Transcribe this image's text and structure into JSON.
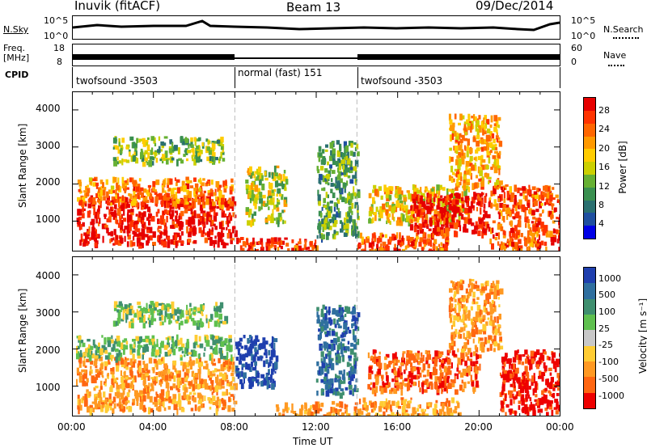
{
  "header": {
    "station": "Inuvik (fitACF)",
    "beam": "Beam 13",
    "date": "09/Dec/2014"
  },
  "aux": {
    "nsky_label": "N.Sky",
    "nsky_ticks": [
      "10^5",
      "10^0"
    ],
    "nsearch_label": "N.Search",
    "nsearch_ticks": [
      "10^5",
      "10^0"
    ],
    "freq_label_1": "Freq.",
    "freq_label_2": "[MHz]",
    "freq_ticks": [
      "18",
      "8"
    ],
    "nave_label": "Nave",
    "nave_ticks": [
      "60",
      "0"
    ],
    "cpid_label": "CPID",
    "cpid_segments": [
      {
        "name": "twofsound -3503",
        "start": 0,
        "end": 8
      },
      {
        "name": "normal (fast) 151",
        "start": 8,
        "end": 14
      },
      {
        "name": "twofsound -3503",
        "start": 14,
        "end": 24
      }
    ]
  },
  "chart_data": [
    {
      "type": "heatmap",
      "quantity": "Power",
      "ylabel": "Slant Range [km]",
      "xlabel": "Time UT",
      "xlim": [
        0,
        24
      ],
      "ylim": [
        180,
        4500
      ],
      "y_ticks": [
        "1000",
        "2000",
        "3000",
        "4000"
      ],
      "x_ticks": [
        "00:00",
        "04:00",
        "08:00",
        "12:00",
        "16:00",
        "20:00",
        "00:00"
      ],
      "colorbar_label": "Power [dB]",
      "colorbar_ticks": [
        "28",
        "24",
        "20",
        "16",
        "12",
        "8",
        "4"
      ],
      "colorbar_colors": [
        "#e60000",
        "#ff3300",
        "#ff6600",
        "#ff9900",
        "#ffcc00",
        "#ccd000",
        "#66b033",
        "#3a9050",
        "#2a7070",
        "#1f4fa0",
        "#0000e6"
      ],
      "features": [
        {
          "t0": 0.2,
          "t1": 8.0,
          "r0": 400,
          "r1": 1700,
          "level": 28
        },
        {
          "t0": 0.2,
          "t1": 7.8,
          "r0": 1500,
          "r1": 2200,
          "level": 22
        },
        {
          "t0": 2.0,
          "t1": 7.5,
          "r0": 2600,
          "r1": 3300,
          "level": 14
        },
        {
          "t0": 8.0,
          "t1": 12.0,
          "r0": 200,
          "r1": 600,
          "level": 26
        },
        {
          "t0": 8.5,
          "t1": 10.5,
          "r0": 1000,
          "r1": 2500,
          "level": 16
        },
        {
          "t0": 12.0,
          "t1": 14.0,
          "r0": 600,
          "r1": 3200,
          "level": 12
        },
        {
          "t0": 14.0,
          "t1": 18.5,
          "r0": 200,
          "r1": 700,
          "level": 24
        },
        {
          "t0": 14.5,
          "t1": 19.5,
          "r0": 1000,
          "r1": 2000,
          "level": 18
        },
        {
          "t0": 16.5,
          "t1": 20.5,
          "r0": 700,
          "r1": 1800,
          "level": 28
        },
        {
          "t0": 18.5,
          "t1": 21.0,
          "r0": 2000,
          "r1": 3900,
          "level": 20
        },
        {
          "t0": 20.5,
          "t1": 24.0,
          "r0": 300,
          "r1": 2000,
          "level": 24
        }
      ]
    },
    {
      "type": "heatmap",
      "quantity": "Velocity",
      "ylabel": "Slant Range [km]",
      "xlabel": "Time UT",
      "xlim": [
        0,
        24
      ],
      "ylim": [
        180,
        4500
      ],
      "y_ticks": [
        "1000",
        "2000",
        "3000",
        "4000"
      ],
      "x_ticks": [
        "00:00",
        "04:00",
        "08:00",
        "12:00",
        "16:00",
        "20:00",
        "00:00"
      ],
      "colorbar_label": "Velocity [m s⁻¹]",
      "colorbar_ticks": [
        "1000",
        "500",
        "100",
        "25",
        "-25",
        "-100",
        "-500",
        "-1000"
      ],
      "colorbar_colors": [
        "#1f3fae",
        "#2f6f9f",
        "#3f8f6f",
        "#5fc04f",
        "#c8c8c8",
        "#ffcc33",
        "#ff9922",
        "#ff6611",
        "#ee0000"
      ],
      "features": [
        {
          "t0": 0.2,
          "t1": 8.0,
          "r0": 400,
          "r1": 1800,
          "level": -100
        },
        {
          "t0": 0.2,
          "t1": 7.8,
          "r0": 1800,
          "r1": 2400,
          "level": 25
        },
        {
          "t0": 2.0,
          "t1": 7.5,
          "r0": 2700,
          "r1": 3300,
          "level": 25
        },
        {
          "t0": 8.0,
          "t1": 10.0,
          "r0": 1000,
          "r1": 2400,
          "level": 1000
        },
        {
          "t0": 10.0,
          "t1": 14.0,
          "r0": 200,
          "r1": 600,
          "level": -100
        },
        {
          "t0": 12.0,
          "t1": 14.0,
          "r0": 800,
          "r1": 3200,
          "level": 500
        },
        {
          "t0": 14.0,
          "t1": 19.0,
          "r0": 200,
          "r1": 700,
          "level": -100
        },
        {
          "t0": 14.5,
          "t1": 20.0,
          "r0": 900,
          "r1": 2000,
          "level": -500
        },
        {
          "t0": 18.5,
          "t1": 21.0,
          "r0": 2000,
          "r1": 3900,
          "level": -100
        },
        {
          "t0": 21.0,
          "t1": 24.0,
          "r0": 300,
          "r1": 2000,
          "level": -1000
        }
      ]
    }
  ]
}
